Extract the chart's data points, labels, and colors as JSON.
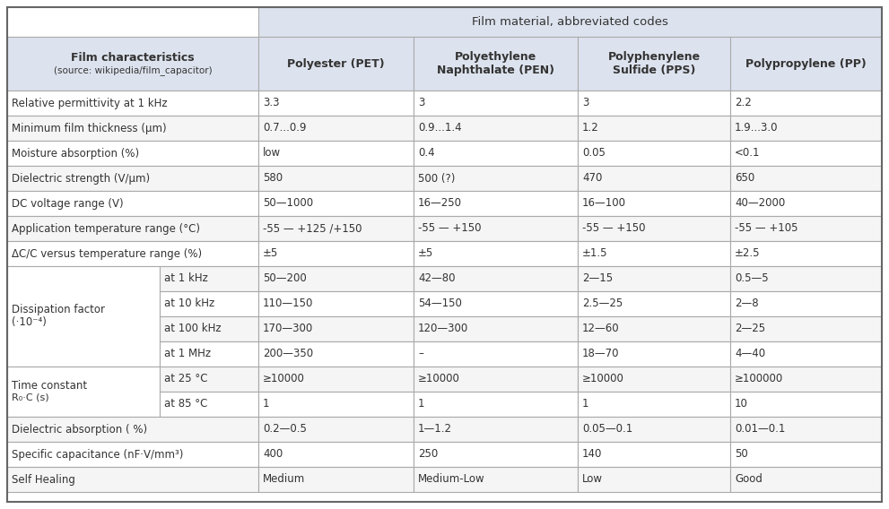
{
  "title_row": "Film material, abbreviated codes",
  "header_col_line1": "Film characteristics",
  "header_col_line2": "(source: wikipedia/film_capacitor)",
  "col_headers": [
    "Polyester (PET)",
    "Polyethylene\nNaphthalate (PEN)",
    "Polyphenylene\nSulfide (PPS)",
    "Polypropylene (PP)"
  ],
  "rows": [
    {
      "label": "Relative permittivity at 1 kHz",
      "sub": null,
      "vals": [
        "3.3",
        "3",
        "3",
        "2.2"
      ]
    },
    {
      "label": "Minimum film thickness (μm)",
      "sub": null,
      "vals": [
        "0.7...0.9",
        "0.9...1.4",
        "1.2",
        "1.9...3.0"
      ]
    },
    {
      "label": "Moisture absorption (%)",
      "sub": null,
      "vals": [
        "low",
        "0.4",
        "0.05",
        "<0.1"
      ]
    },
    {
      "label": "Dielectric strength (V/μm)",
      "sub": null,
      "vals": [
        "580",
        "500 (?)",
        "470",
        "650"
      ]
    },
    {
      "label": "DC voltage range (V)",
      "sub": null,
      "vals": [
        "50—1000",
        "16—250",
        "16—100",
        "40—2000"
      ]
    },
    {
      "label": "Application temperature range (°C)",
      "sub": null,
      "vals": [
        "-55 — +125 /+150",
        "-55 — +150",
        "-55 — +150",
        "-55 — +105"
      ]
    },
    {
      "label": "ΔC/C versus temperature range (%)",
      "sub": null,
      "vals": [
        "±5",
        "±5",
        "±1.5",
        "±2.5"
      ]
    },
    {
      "label": "Dissipation factor\n(·10⁻⁴)",
      "sub": "at 1 kHz",
      "vals": [
        "50—200",
        "42—80",
        "2—15",
        "0.5—5"
      ]
    },
    {
      "label": "Dissipation factor\n(·10⁻⁴)",
      "sub": "at 10 kHz",
      "vals": [
        "110—150",
        "54—150",
        "2.5—25",
        "2—8"
      ]
    },
    {
      "label": "Dissipation factor\n(·10⁻⁴)",
      "sub": "at 100 kHz",
      "vals": [
        "170—300",
        "120—300",
        "12—60",
        "2—25"
      ]
    },
    {
      "label": "Dissipation factor\n(·10⁻⁴)",
      "sub": "at 1 MHz",
      "vals": [
        "200—350",
        "–",
        "18—70",
        "4—40"
      ]
    },
    {
      "label": "Time constant\nR₀·C (s)",
      "sub": "at 25 °C",
      "vals": [
        "≥10000",
        "≥10000",
        "≥10000",
        "≥100000"
      ]
    },
    {
      "label": "Time constant\nR₀·C (s)",
      "sub": "at 85 °C",
      "vals": [
        "1",
        "1",
        "1",
        "10"
      ]
    },
    {
      "label": "Dielectric absorption ( %)",
      "sub": null,
      "vals": [
        "0.2—0.5",
        "1—1.2",
        "0.05—0.1",
        "0.01—0.1"
      ]
    },
    {
      "label": "Specific capacitance (nF·V/mm³)",
      "sub": null,
      "vals": [
        "400",
        "250",
        "140",
        "50"
      ]
    },
    {
      "label": "Self Healing",
      "sub": null,
      "vals": [
        "Medium",
        "Medium-Low",
        "Low",
        "Good"
      ]
    }
  ],
  "dissipation_rows": [
    7,
    8,
    9,
    10
  ],
  "time_constant_rows": [
    11,
    12
  ],
  "col_bg": "#e8eaf0",
  "row_bg_even": "#ffffff",
  "row_bg_odd": "#f5f5f5",
  "merged_label_bg": "#ffffff",
  "border_color": "#aaaaaa",
  "text_color": "#333333",
  "title_bg": "#dde3ee",
  "header_bg": "#dde3ee"
}
